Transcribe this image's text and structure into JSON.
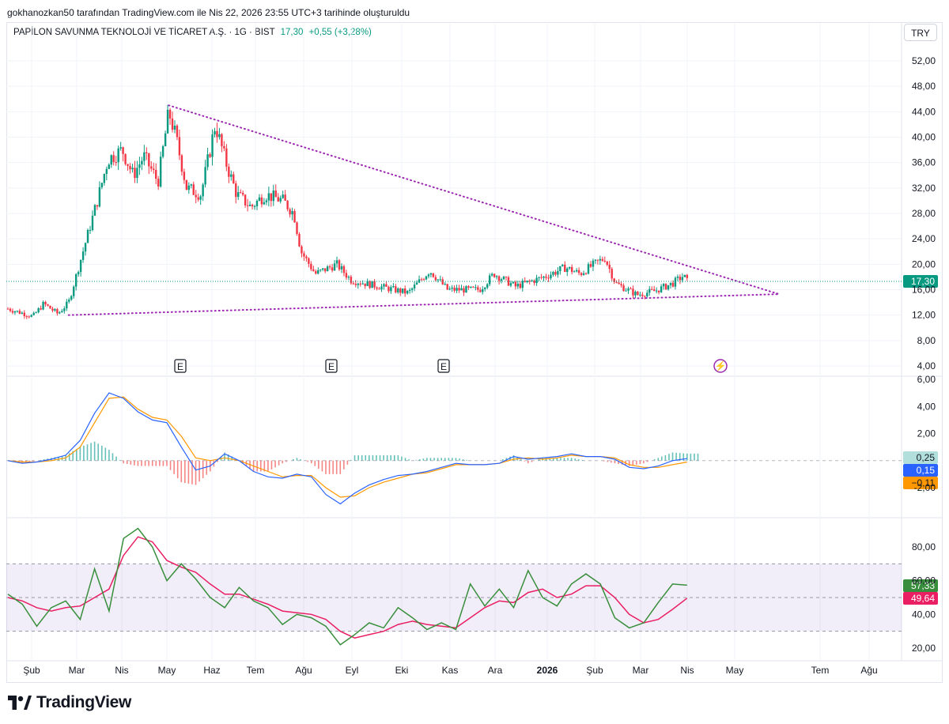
{
  "caption": "gokhanozkan50 tarafından TradingView.com ile Nis 22, 2026 23:55 UTC+3 tarihinde oluşturuldu",
  "symbol": {
    "name": "PAPİLON SAVUNMA TEKNOLOJİ VE TİCARET A.Ş. · 1G · BIST",
    "price": "17,30",
    "change": "+0,55 (+3,28%)"
  },
  "currency": "TRY",
  "brand": "TradingView",
  "colors": {
    "up": "#089981",
    "down": "#f23645",
    "trendline": "#9c27b0",
    "macd": "#2962ff",
    "signal": "#ff9800",
    "rsi": "#388e3c",
    "rsi_ma": "#e91e63",
    "rsi_band": "#7e57c2"
  },
  "chart_data": [
    {
      "type": "candlestick",
      "pane": "price",
      "x_labels": [
        "Şub",
        "Mar",
        "Nis",
        "May",
        "Haz",
        "Tem",
        "Ağu",
        "Eyl",
        "Eki",
        "Kas",
        "Ara",
        "2026",
        "Şub",
        "Mar",
        "Nis",
        "May",
        "Tem",
        "Ağu"
      ],
      "y_ticks": [
        "52,00",
        "48,00",
        "44,00",
        "40,00",
        "36,00",
        "32,00",
        "28,00",
        "24,00",
        "20,00",
        "16,00",
        "12,00",
        "8,00",
        "4,00"
      ],
      "ylim": [
        4,
        52
      ],
      "last_price": 17.3,
      "last_price_label": "17,30",
      "close_path": [
        {
          "x": 0,
          "y": 13.0
        },
        {
          "x": 0.035,
          "y": 11.8
        },
        {
          "x": 0.05,
          "y": 13.8
        },
        {
          "x": 0.07,
          "y": 12.2
        },
        {
          "x": 0.085,
          "y": 14.0
        },
        {
          "x": 0.095,
          "y": 18.0
        },
        {
          "x": 0.11,
          "y": 24.0
        },
        {
          "x": 0.125,
          "y": 30.0
        },
        {
          "x": 0.14,
          "y": 36.5
        },
        {
          "x": 0.16,
          "y": 38.0
        },
        {
          "x": 0.175,
          "y": 34.0
        },
        {
          "x": 0.19,
          "y": 37.0
        },
        {
          "x": 0.21,
          "y": 33.0
        },
        {
          "x": 0.225,
          "y": 44.0
        },
        {
          "x": 0.235,
          "y": 40.0
        },
        {
          "x": 0.25,
          "y": 32.0
        },
        {
          "x": 0.27,
          "y": 31.0
        },
        {
          "x": 0.29,
          "y": 42.0
        },
        {
          "x": 0.305,
          "y": 36.0
        },
        {
          "x": 0.32,
          "y": 31.0
        },
        {
          "x": 0.34,
          "y": 29.0
        },
        {
          "x": 0.36,
          "y": 31.0
        },
        {
          "x": 0.385,
          "y": 30.0
        },
        {
          "x": 0.4,
          "y": 28.0
        },
        {
          "x": 0.41,
          "y": 22.0
        },
        {
          "x": 0.43,
          "y": 18.5
        },
        {
          "x": 0.46,
          "y": 20.0
        },
        {
          "x": 0.48,
          "y": 17.5
        },
        {
          "x": 0.52,
          "y": 16.5
        },
        {
          "x": 0.56,
          "y": 15.5
        },
        {
          "x": 0.59,
          "y": 19.0
        },
        {
          "x": 0.615,
          "y": 16.0
        },
        {
          "x": 0.66,
          "y": 16.0
        },
        {
          "x": 0.68,
          "y": 18.5
        },
        {
          "x": 0.71,
          "y": 16.5
        },
        {
          "x": 0.75,
          "y": 18.0
        },
        {
          "x": 0.78,
          "y": 19.5
        },
        {
          "x": 0.8,
          "y": 18.5
        },
        {
          "x": 0.82,
          "y": 20.0
        },
        {
          "x": 0.835,
          "y": 21.0
        },
        {
          "x": 0.85,
          "y": 17.0
        },
        {
          "x": 0.88,
          "y": 15.2
        },
        {
          "x": 0.905,
          "y": 15.8
        },
        {
          "x": 0.93,
          "y": 17.0
        },
        {
          "x": 0.945,
          "y": 18.2
        },
        {
          "x": 0.95,
          "y": 17.3
        }
      ],
      "event_markers": [
        "E",
        "E",
        "E",
        "⚡"
      ],
      "trendlines": [
        {
          "style": "dotted",
          "from": {
            "date": "May",
            "y": 45
          },
          "to": {
            "date": "May+",
            "y": 15.3
          }
        },
        {
          "style": "dotted",
          "from": {
            "date": "Mar",
            "y": 12.0
          },
          "to": {
            "date": "May+",
            "y": 15.3
          }
        }
      ]
    },
    {
      "type": "line",
      "pane": "macd",
      "ylim": [
        -4,
        6
      ],
      "y_ticks": [
        "6,00",
        "4,00",
        "2,00",
        "-2,00"
      ],
      "badges": [
        {
          "label": "0,25",
          "color": "#b2dfdb",
          "text_color": "#131722"
        },
        {
          "label": "0,15",
          "color": "#2962ff",
          "text_color": "#ffffff"
        },
        {
          "label": "−0,11",
          "color": "#ff9800",
          "text_color": "#131722"
        }
      ],
      "series": [
        {
          "name": "MACD",
          "values": [
            0,
            -0.2,
            -0.1,
            0.1,
            0.4,
            1.5,
            3.5,
            5.0,
            4.6,
            3.6,
            3.0,
            2.8,
            1.0,
            -0.7,
            -0.4,
            0.5,
            0.0,
            -0.8,
            -1.2,
            -1.3,
            -1.0,
            -1.2,
            -2.5,
            -3.2,
            -2.4,
            -1.8,
            -1.4,
            -1.1,
            -1.0,
            -0.8,
            -0.5,
            -0.2,
            -0.3,
            -0.3,
            -0.2,
            0.3,
            0.1,
            0.2,
            0.3,
            0.5,
            0.3,
            0.3,
            0.1,
            -0.5,
            -0.6,
            -0.4,
            0.0,
            0.15
          ]
        },
        {
          "name": "Signal",
          "values": [
            0,
            -0.1,
            -0.1,
            0.0,
            0.2,
            1.0,
            2.8,
            4.6,
            4.7,
            3.8,
            3.2,
            3.0,
            1.8,
            0.2,
            0.0,
            0.2,
            0.0,
            -0.4,
            -0.8,
            -1.2,
            -1.1,
            -1.1,
            -2.0,
            -2.7,
            -2.6,
            -2.0,
            -1.6,
            -1.3,
            -1.0,
            -0.9,
            -0.6,
            -0.3,
            -0.3,
            -0.3,
            -0.2,
            0.1,
            0.2,
            0.1,
            0.2,
            0.4,
            0.3,
            0.3,
            0.2,
            -0.3,
            -0.5,
            -0.5,
            -0.3,
            -0.11
          ]
        }
      ]
    },
    {
      "type": "line",
      "pane": "rsi",
      "ylim": [
        10,
        100
      ],
      "y_ticks": [
        "80,00",
        "60,00",
        "40,00",
        "20,00"
      ],
      "bands": [
        70,
        50,
        30
      ],
      "badges": [
        {
          "label": "57,33",
          "color": "#388e3c",
          "text_color": "#ffffff"
        },
        {
          "label": "49,64",
          "color": "#e91e63",
          "text_color": "#ffffff"
        }
      ],
      "series": [
        {
          "name": "RSI",
          "values": [
            52,
            46,
            33,
            44,
            48,
            37,
            67,
            42,
            85,
            91,
            80,
            60,
            70,
            61,
            50,
            44,
            56,
            48,
            44,
            34,
            40,
            38,
            33,
            22,
            28,
            35,
            32,
            44,
            38,
            31,
            35,
            31,
            58,
            45,
            55,
            44,
            66,
            50,
            45,
            58,
            64,
            58,
            38,
            32,
            35,
            47,
            58,
            57.33
          ]
        },
        {
          "name": "RSI MA",
          "values": [
            50,
            48,
            44,
            42,
            44,
            45,
            50,
            55,
            75,
            86,
            83,
            72,
            68,
            65,
            58,
            52,
            52,
            49,
            46,
            42,
            41,
            40,
            37,
            30,
            26,
            28,
            30,
            34,
            36,
            34,
            33,
            32,
            38,
            44,
            48,
            47,
            53,
            55,
            50,
            52,
            57,
            57,
            50,
            40,
            35,
            37,
            43,
            49.64
          ]
        }
      ]
    }
  ]
}
